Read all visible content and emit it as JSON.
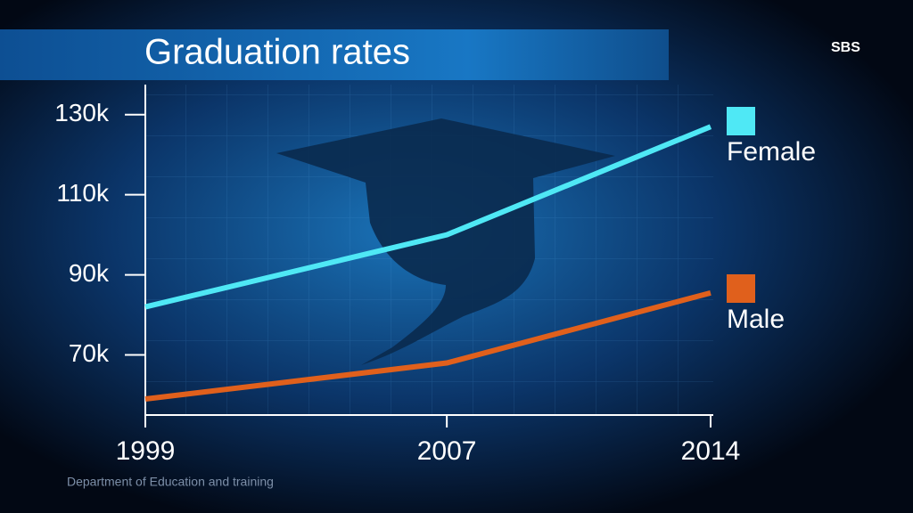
{
  "chart_data": {
    "type": "line",
    "title": "Graduation rates",
    "source": "Department of Education and training",
    "logo": "SBS",
    "x": [
      1999,
      2007,
      2014
    ],
    "xlim": [
      1999,
      2014
    ],
    "xticks": [
      1999,
      2007,
      2014
    ],
    "ylim": [
      55000,
      137500
    ],
    "yticks": [
      {
        "value": 130000,
        "label": "130k"
      },
      {
        "value": 110000,
        "label": "110k"
      },
      {
        "value": 90000,
        "label": "90k"
      },
      {
        "value": 70000,
        "label": "70k"
      }
    ],
    "legend": "right",
    "series": [
      {
        "name": "Female",
        "color": "#4fe8f5",
        "values": [
          82000,
          100000,
          127000
        ]
      },
      {
        "name": "Male",
        "color": "#e0601c",
        "values": [
          59000,
          68000,
          85500
        ]
      }
    ]
  }
}
